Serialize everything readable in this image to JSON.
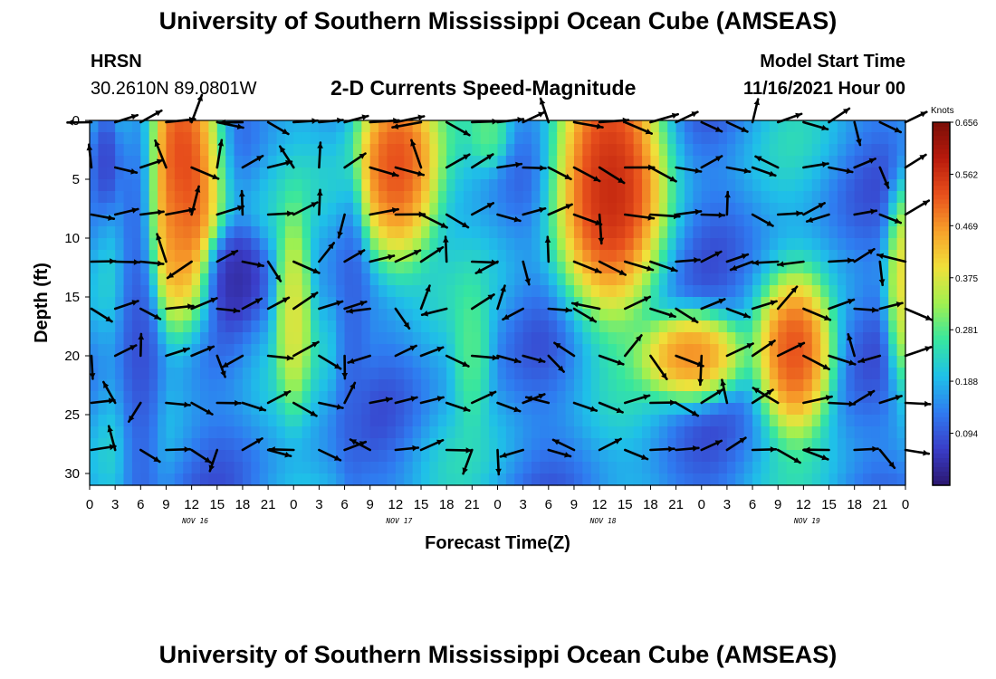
{
  "header": {
    "title": "University of Southern Mississippi Ocean Cube (AMSEAS)",
    "station": "HRSN",
    "coords": "30.2610N  89.0801W",
    "subtitle": "2-D Currents Speed-Magnitude",
    "model_start_label": "Model Start Time",
    "model_start_value": "11/16/2021 Hour 00"
  },
  "footer": {
    "title": "University of Southern Mississippi Ocean Cube (AMSEAS)"
  },
  "chart_data": {
    "type": "heatmap",
    "title": "2-D Currents Speed-Magnitude",
    "xlabel": "Forecast Time(Z)",
    "ylabel": "Depth (ft)",
    "x_ticks": [
      "0",
      "3",
      "6",
      "9",
      "12",
      "15",
      "18",
      "21",
      "0",
      "3",
      "6",
      "9",
      "12",
      "15",
      "18",
      "21",
      "0",
      "3",
      "6",
      "9",
      "12",
      "15",
      "18",
      "21",
      "0",
      "3",
      "6",
      "9",
      "12",
      "15",
      "18",
      "21",
      "0"
    ],
    "x_range_hours": [
      0,
      96
    ],
    "y_ticks": [
      "0",
      "5",
      "10",
      "15",
      "20",
      "25",
      "30"
    ],
    "y_range_ft": [
      0,
      31
    ],
    "y_inverted": true,
    "day_labels": [
      {
        "text": "NOV 16",
        "hour": 12
      },
      {
        "text": "NOV 17",
        "hour": 36
      },
      {
        "text": "NOV 18",
        "hour": 60
      },
      {
        "text": "NOV 19",
        "hour": 84
      }
    ],
    "colorbar": {
      "unit": "Knots",
      "ticks": [
        "0.656",
        "0.562",
        "0.469",
        "0.375",
        "0.281",
        "0.188",
        "0.094"
      ],
      "tick_values": [
        0.656,
        0.562,
        0.469,
        0.375,
        0.281,
        0.188,
        0.094
      ],
      "min": 0.0,
      "max": 0.656,
      "colors": [
        "#2b1770",
        "#3a3dc8",
        "#2f7bf0",
        "#1fc0e8",
        "#36e6a0",
        "#a0f050",
        "#f0e03a",
        "#f7a02a",
        "#e8501c",
        "#b81a0c",
        "#7a0e08"
      ]
    },
    "speed_features_knots": [
      {
        "hour": 6,
        "depth": 16,
        "speed": 0.06,
        "wt": 1.8,
        "wd": 16
      },
      {
        "hour": 11,
        "depth": 5,
        "speed": 0.65,
        "wt": 3.2,
        "wd": 8
      },
      {
        "hour": 10,
        "depth": 10,
        "speed": 0.45,
        "wt": 2.2,
        "wd": 5
      },
      {
        "hour": 17,
        "depth": 13,
        "speed": 0.02,
        "wt": 2.6,
        "wd": 2.8
      },
      {
        "hour": 24,
        "depth": 16,
        "speed": 0.42,
        "wt": 1.4,
        "wd": 5.5
      },
      {
        "hour": 36,
        "depth": 4,
        "speed": 0.62,
        "wt": 3.5,
        "wd": 6
      },
      {
        "hour": 45,
        "depth": 20,
        "speed": 0.3,
        "wt": 1.5,
        "wd": 4
      },
      {
        "hour": 47,
        "depth": 1,
        "speed": 0.3,
        "wt": 1.5,
        "wd": 2
      },
      {
        "hour": 61,
        "depth": 5,
        "speed": 0.66,
        "wt": 4.5,
        "wd": 8
      },
      {
        "hour": 71,
        "depth": 20,
        "speed": 0.55,
        "wt": 4.0,
        "wd": 2.6
      },
      {
        "hour": 83,
        "depth": 20,
        "speed": 0.6,
        "wt": 3.0,
        "wd": 4.5
      },
      {
        "hour": 96,
        "depth": 14,
        "speed": 0.45,
        "wt": 1.5,
        "wd": 6
      },
      {
        "hour": 31,
        "depth": 18,
        "speed": 0.1,
        "wt": 1.2,
        "wd": 10
      },
      {
        "hour": 2,
        "depth": 3,
        "speed": 0.05,
        "wt": 1.2,
        "wd": 3
      }
    ],
    "vector_depths_ft": [
      0,
      4,
      8,
      12,
      16,
      20,
      24,
      28
    ],
    "vector_hours": [
      0,
      3,
      6,
      9,
      12,
      15,
      18,
      21,
      24,
      27,
      30,
      33,
      36,
      39,
      42,
      45,
      48,
      51,
      54,
      57,
      60,
      63,
      66,
      69,
      72,
      75,
      78,
      81,
      84,
      87,
      90,
      93,
      96
    ],
    "vector_direction_seed": 7
  }
}
